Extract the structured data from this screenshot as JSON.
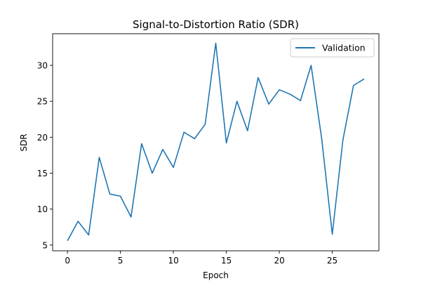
{
  "chart_data": {
    "type": "line",
    "title": "Signal-to-Distortion Ratio (SDR)",
    "xlabel": "Epoch",
    "ylabel": "SDR",
    "xlim": [
      -1.4,
      29.4
    ],
    "ylim": [
      4.2,
      34.4
    ],
    "xticks": [
      0,
      5,
      10,
      15,
      20,
      25
    ],
    "yticks": [
      5,
      10,
      15,
      20,
      25,
      30
    ],
    "grid": false,
    "legend_position": "top-right",
    "series": [
      {
        "name": "Validation",
        "color": "#1f77b4",
        "x": [
          0,
          1,
          2,
          3,
          4,
          5,
          6,
          7,
          8,
          9,
          10,
          11,
          12,
          13,
          14,
          15,
          16,
          17,
          18,
          19,
          20,
          21,
          22,
          23,
          24,
          25,
          26,
          27,
          28
        ],
        "y": [
          5.6,
          8.3,
          6.4,
          17.2,
          12.1,
          11.8,
          8.9,
          19.1,
          15.0,
          18.3,
          15.8,
          20.7,
          19.8,
          21.8,
          33.1,
          19.2,
          25.0,
          20.9,
          28.3,
          24.6,
          26.6,
          26.0,
          25.1,
          30.0,
          19.8,
          6.5,
          19.6,
          27.2,
          28.1
        ]
      }
    ]
  }
}
